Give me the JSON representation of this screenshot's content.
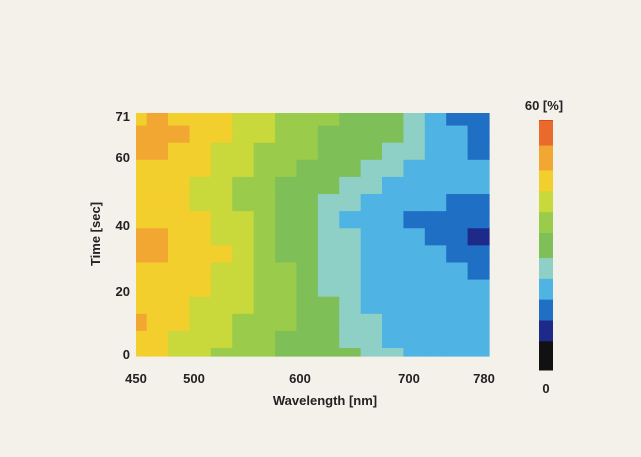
{
  "chart_data": {
    "type": "heatmap",
    "title": "",
    "xlabel": "Wavelength [nm]",
    "ylabel": "Time [sec]",
    "xlim": [
      450,
      780
    ],
    "ylim": [
      0,
      71
    ],
    "xticks": [
      "450",
      "500",
      "600",
      "700",
      "780"
    ],
    "xtick_values": [
      450,
      500,
      600,
      700,
      780
    ],
    "yticks": [
      "0",
      "20",
      "40",
      "60",
      "71"
    ],
    "ytick_values": [
      0,
      20,
      40,
      60,
      71
    ],
    "colorbar": {
      "label_max": "60 [%]",
      "label_min": "0",
      "range": [
        0,
        60
      ]
    },
    "grid": false,
    "x": [
      450,
      470,
      490,
      510,
      530,
      550,
      570,
      590,
      610,
      630,
      650,
      670,
      690,
      710,
      730,
      750,
      770
    ],
    "y": [
      0,
      5,
      10,
      15,
      20,
      25,
      30,
      35,
      40,
      45,
      50,
      55,
      60,
      65,
      70
    ],
    "z": [
      [
        46,
        44,
        41,
        39,
        37,
        35,
        33,
        31,
        29,
        28,
        27,
        24,
        22,
        21,
        20,
        20,
        19
      ],
      [
        47,
        45,
        42,
        40,
        38,
        36,
        34,
        32,
        30,
        28,
        26,
        22,
        21,
        20,
        20,
        20,
        19
      ],
      [
        48,
        46,
        43,
        41,
        39,
        37,
        35,
        33,
        31,
        28,
        25,
        22,
        20,
        20,
        20,
        19,
        19
      ],
      [
        47,
        46,
        44,
        42,
        40,
        38,
        36,
        34,
        31,
        27,
        24,
        21,
        20,
        20,
        19,
        19,
        18
      ],
      [
        45,
        46,
        45,
        43,
        41,
        39,
        37,
        34,
        30,
        26,
        23,
        21,
        20,
        20,
        19,
        18,
        17
      ],
      [
        46,
        47,
        45,
        44,
        42,
        40,
        37,
        33,
        29,
        26,
        23,
        21,
        20,
        19,
        18,
        17,
        14
      ],
      [
        50,
        51,
        47,
        45,
        43,
        40,
        36,
        32,
        29,
        26,
        23,
        20,
        19,
        18,
        17,
        14,
        12
      ],
      [
        48,
        49,
        47,
        45,
        42,
        39,
        35,
        31,
        28,
        25,
        22,
        19,
        17,
        17,
        16,
        13,
        11
      ],
      [
        45,
        45,
        44,
        43,
        41,
        38,
        34,
        30,
        27,
        24,
        21,
        18,
        17,
        16,
        15,
        14,
        12
      ],
      [
        43,
        43,
        43,
        42,
        40,
        37,
        33,
        30,
        28,
        26,
        23,
        20,
        18,
        17,
        17,
        16,
        15
      ],
      [
        44,
        45,
        44,
        42,
        40,
        37,
        34,
        32,
        30,
        28,
        25,
        22,
        20,
        19,
        18,
        18,
        17
      ],
      [
        47,
        47,
        46,
        43,
        41,
        38,
        36,
        34,
        32,
        30,
        28,
        26,
        23,
        21,
        19,
        18,
        17
      ],
      [
        49,
        49,
        47,
        45,
        42,
        39,
        37,
        35,
        33,
        31,
        30,
        28,
        26,
        23,
        20,
        18,
        16
      ],
      [
        48,
        49,
        48,
        46,
        43,
        40,
        38,
        36,
        34,
        32,
        31,
        29,
        27,
        24,
        20,
        17,
        14
      ],
      [
        47,
        48,
        47,
        45,
        43,
        41,
        39,
        37,
        35,
        33,
        31,
        30,
        27,
        24,
        20,
        16,
        12
      ]
    ]
  }
}
